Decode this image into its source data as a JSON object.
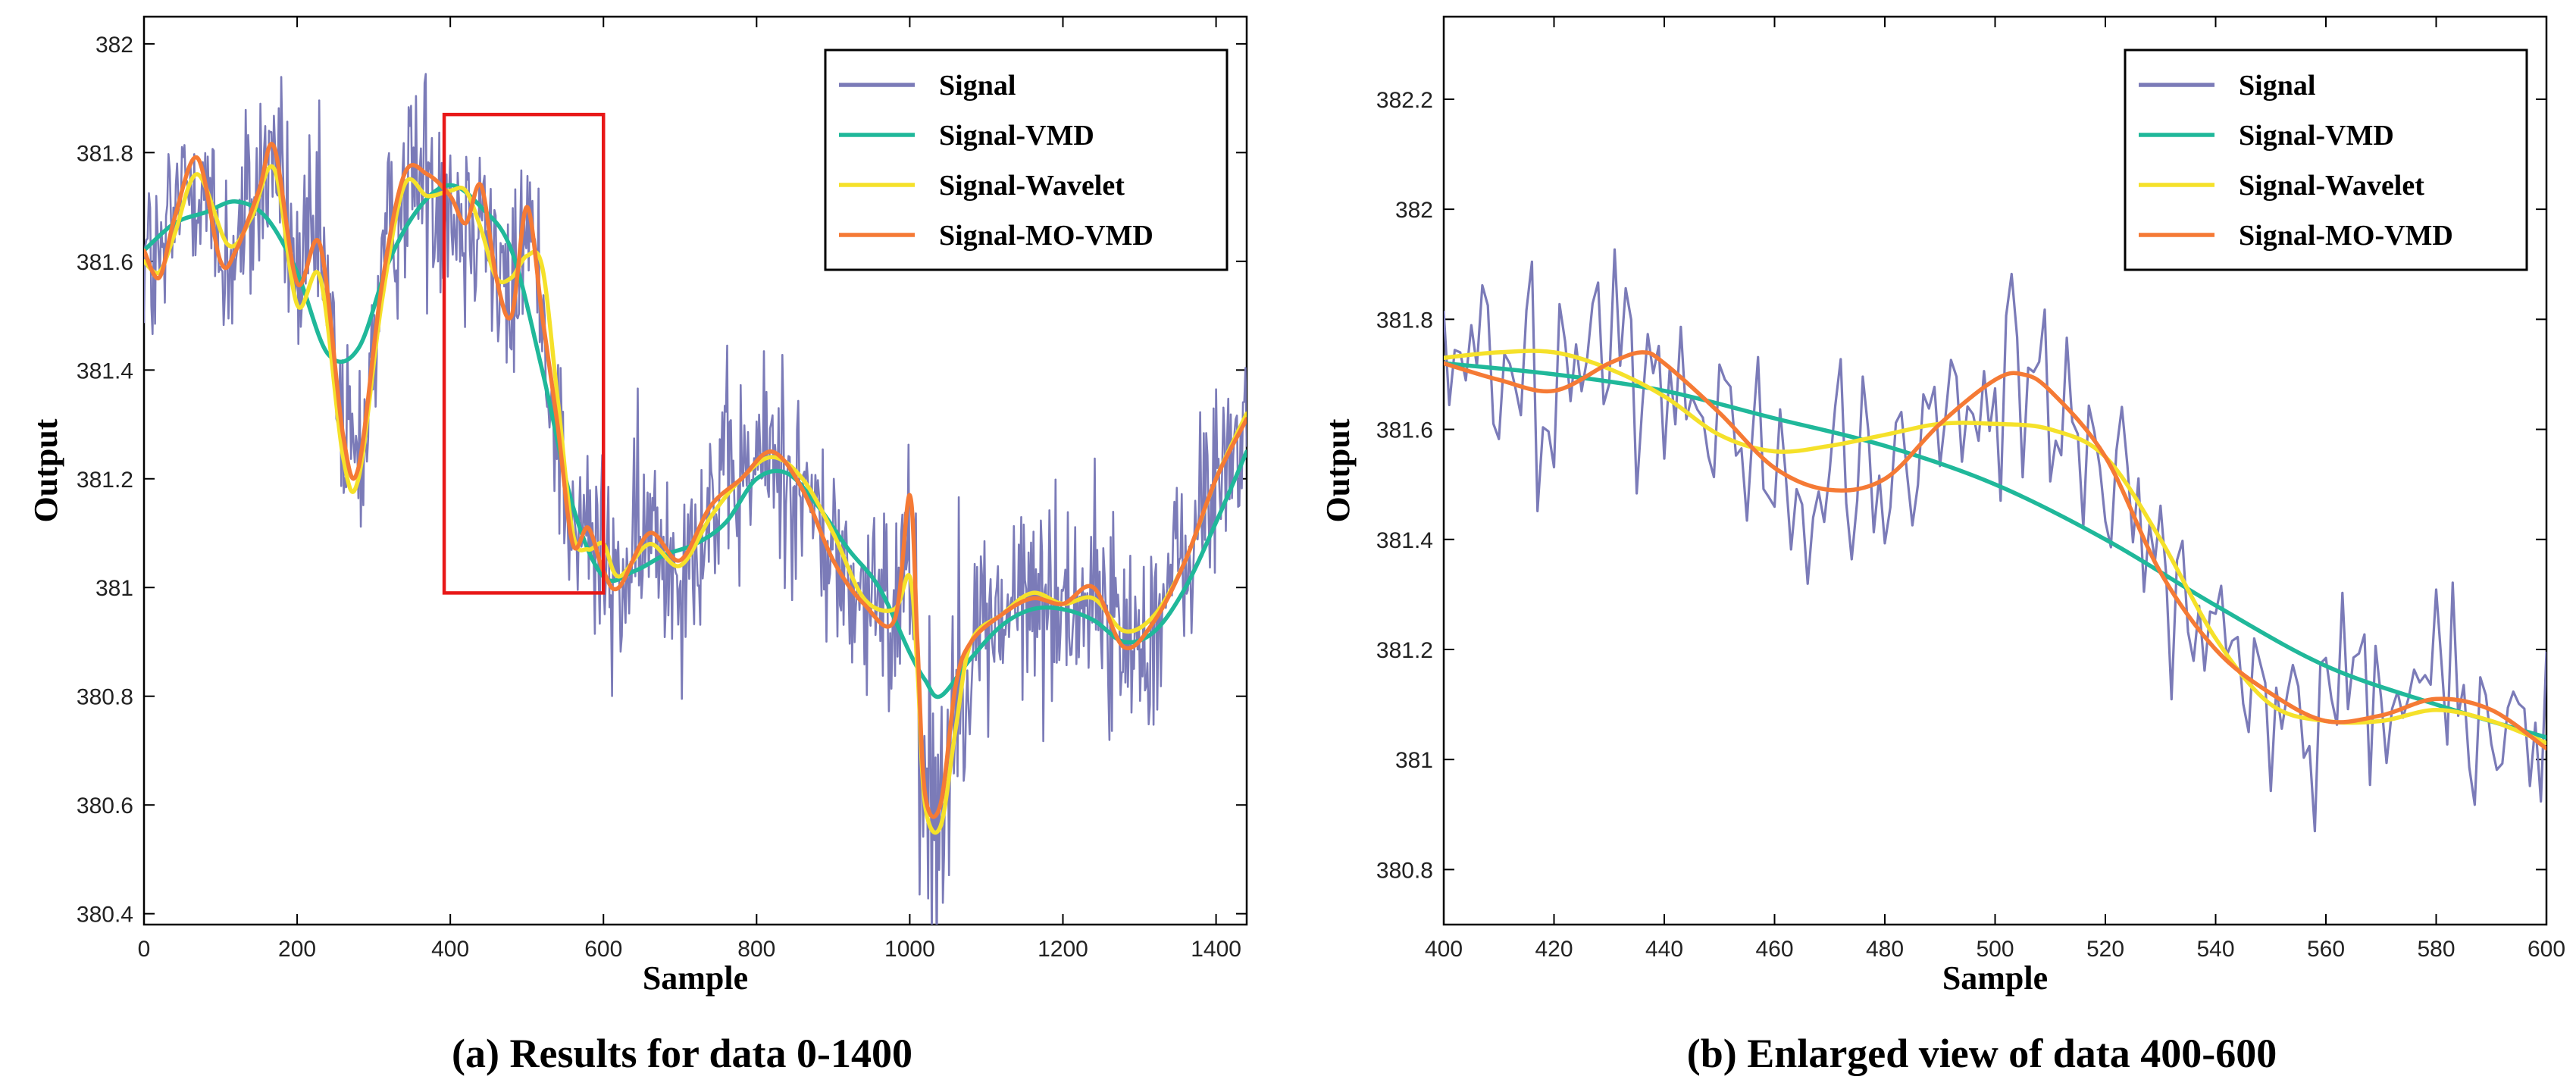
{
  "legend_entries": [
    "Signal",
    "Signal-VMD",
    "Signal-Wavelet",
    "Signal-MO-VMD"
  ],
  "colors": {
    "signal": "#7b7bb8",
    "vmd": "#20b89a",
    "wavelet": "#f5e12a",
    "movmd": "#f57a35",
    "highlight_box": "#e81818"
  },
  "chart_data": [
    {
      "type": "line",
      "caption": "(a) Results for data 0-1400",
      "xlabel": "Sample",
      "ylabel": "Output",
      "xlim": [
        0,
        1440
      ],
      "ylim": [
        380.38,
        382.05
      ],
      "xticks": [
        0,
        200,
        400,
        600,
        800,
        1000,
        1200,
        1400
      ],
      "yticks": [
        380.4,
        380.6,
        380.8,
        381,
        381.2,
        381.4,
        381.6,
        381.8,
        382
      ],
      "ytick_labels": [
        "380.4",
        "380.6",
        "380.8",
        "381",
        "381.2",
        "381.4",
        "381.6",
        "381.8",
        "382"
      ],
      "legend_position": "top-right",
      "highlight_box": {
        "x_range": [
          392,
          600
        ],
        "y_range": [
          380.99,
          381.87
        ]
      },
      "series": [
        {
          "name": "Signal-VMD",
          "x": [
            0,
            40,
            80,
            120,
            160,
            200,
            240,
            280,
            320,
            360,
            400,
            440,
            480,
            520,
            560,
            600,
            640,
            680,
            720,
            760,
            800,
            840,
            880,
            920,
            960,
            1000,
            1020,
            1040,
            1080,
            1120,
            1160,
            1200,
            1240,
            1280,
            1320,
            1360,
            1400,
            1440
          ],
          "y": [
            381.62,
            381.67,
            381.69,
            381.71,
            381.68,
            381.58,
            381.43,
            381.44,
            381.6,
            381.7,
            381.74,
            381.7,
            381.62,
            381.4,
            381.15,
            381.02,
            381.03,
            381.06,
            381.08,
            381.12,
            381.2,
            381.21,
            381.15,
            381.07,
            381.0,
            380.88,
            380.83,
            380.8,
            380.87,
            380.93,
            380.96,
            380.96,
            380.94,
            380.9,
            380.92,
            381.0,
            381.12,
            381.25
          ]
        },
        {
          "name": "Signal-Wavelet",
          "x": [
            0,
            20,
            40,
            70,
            110,
            140,
            170,
            200,
            230,
            260,
            280,
            310,
            340,
            370,
            400,
            420,
            440,
            460,
            480,
            500,
            520,
            540,
            560,
            580,
            600,
            620,
            660,
            700,
            740,
            780,
            820,
            860,
            900,
            940,
            980,
            1000,
            1010,
            1020,
            1040,
            1060,
            1080,
            1120,
            1160,
            1200,
            1240,
            1280,
            1320,
            1360,
            1400,
            1440
          ],
          "y": [
            381.6,
            381.58,
            381.65,
            381.76,
            381.63,
            381.68,
            381.77,
            381.52,
            381.57,
            381.24,
            381.2,
            381.52,
            381.74,
            381.72,
            381.73,
            381.73,
            381.66,
            381.57,
            381.57,
            381.61,
            381.59,
            381.35,
            381.1,
            381.07,
            381.08,
            381.02,
            381.08,
            381.04,
            381.13,
            381.2,
            381.24,
            381.2,
            381.1,
            380.98,
            380.96,
            381.02,
            380.85,
            380.6,
            380.56,
            380.74,
            380.9,
            380.95,
            380.99,
            380.97,
            380.98,
            380.92,
            380.95,
            381.05,
            381.2,
            381.32
          ]
        },
        {
          "name": "Signal-MO-VMD",
          "x": [
            0,
            20,
            40,
            70,
            100,
            120,
            150,
            170,
            200,
            230,
            260,
            280,
            310,
            340,
            370,
            400,
            420,
            440,
            460,
            480,
            500,
            520,
            540,
            560,
            580,
            600,
            620,
            660,
            700,
            740,
            780,
            820,
            860,
            900,
            940,
            980,
            1000,
            1010,
            1020,
            1040,
            1060,
            1080,
            1120,
            1160,
            1200,
            1240,
            1280,
            1320,
            1360,
            1400,
            1440
          ],
          "y": [
            381.62,
            381.57,
            381.68,
            381.79,
            381.6,
            381.62,
            381.73,
            381.81,
            381.56,
            381.63,
            381.28,
            381.22,
            381.55,
            381.76,
            381.76,
            381.72,
            381.67,
            381.74,
            381.57,
            381.5,
            381.7,
            381.5,
            381.3,
            381.08,
            381.11,
            381.03,
            381.0,
            381.1,
            381.05,
            381.15,
            381.2,
            381.25,
            381.18,
            381.05,
            380.97,
            380.94,
            381.17,
            380.9,
            380.62,
            380.6,
            380.82,
            380.9,
            380.95,
            380.98,
            380.97,
            381.0,
            380.89,
            380.94,
            381.05,
            381.2,
            381.31
          ]
        }
      ]
    },
    {
      "type": "line",
      "caption": "(b) Enlarged view of data 400-600",
      "xlabel": "Sample",
      "ylabel": "Output",
      "xlim": [
        400,
        600
      ],
      "ylim": [
        380.7,
        382.35
      ],
      "xticks": [
        400,
        420,
        440,
        460,
        480,
        500,
        520,
        540,
        560,
        580,
        600
      ],
      "yticks": [
        380.8,
        381,
        381.2,
        381.4,
        381.6,
        381.8,
        382,
        382.2
      ],
      "ytick_labels": [
        "380.8",
        "381",
        "381.2",
        "381.4",
        "381.6",
        "381.8",
        "382",
        "382.2"
      ],
      "legend_position": "top-right",
      "series": [
        {
          "name": "Signal-VMD",
          "x": [
            400,
            420,
            440,
            460,
            480,
            500,
            520,
            540,
            560,
            580,
            600
          ],
          "y": [
            381.72,
            381.7,
            381.67,
            381.62,
            381.57,
            381.5,
            381.4,
            381.28,
            381.17,
            381.1,
            381.04
          ]
        },
        {
          "name": "Signal-Wavelet",
          "x": [
            400,
            410,
            420,
            430,
            440,
            450,
            460,
            470,
            480,
            490,
            500,
            510,
            520,
            530,
            540,
            550,
            560,
            570,
            580,
            590,
            600
          ],
          "y": [
            381.73,
            381.74,
            381.74,
            381.71,
            381.66,
            381.59,
            381.56,
            381.57,
            381.59,
            381.61,
            381.61,
            381.6,
            381.55,
            381.4,
            381.22,
            381.1,
            381.07,
            381.07,
            381.09,
            381.07,
            381.03
          ]
        },
        {
          "name": "Signal-MO-VMD",
          "x": [
            400,
            410,
            420,
            430,
            436,
            440,
            450,
            460,
            470,
            480,
            490,
            500,
            505,
            510,
            520,
            530,
            540,
            550,
            560,
            570,
            580,
            590,
            600
          ],
          "y": [
            381.72,
            381.69,
            381.67,
            381.72,
            381.74,
            381.72,
            381.63,
            381.53,
            381.49,
            381.51,
            381.61,
            381.69,
            381.7,
            381.67,
            381.55,
            381.34,
            381.2,
            381.12,
            381.07,
            381.08,
            381.11,
            381.09,
            381.02
          ]
        }
      ]
    }
  ]
}
